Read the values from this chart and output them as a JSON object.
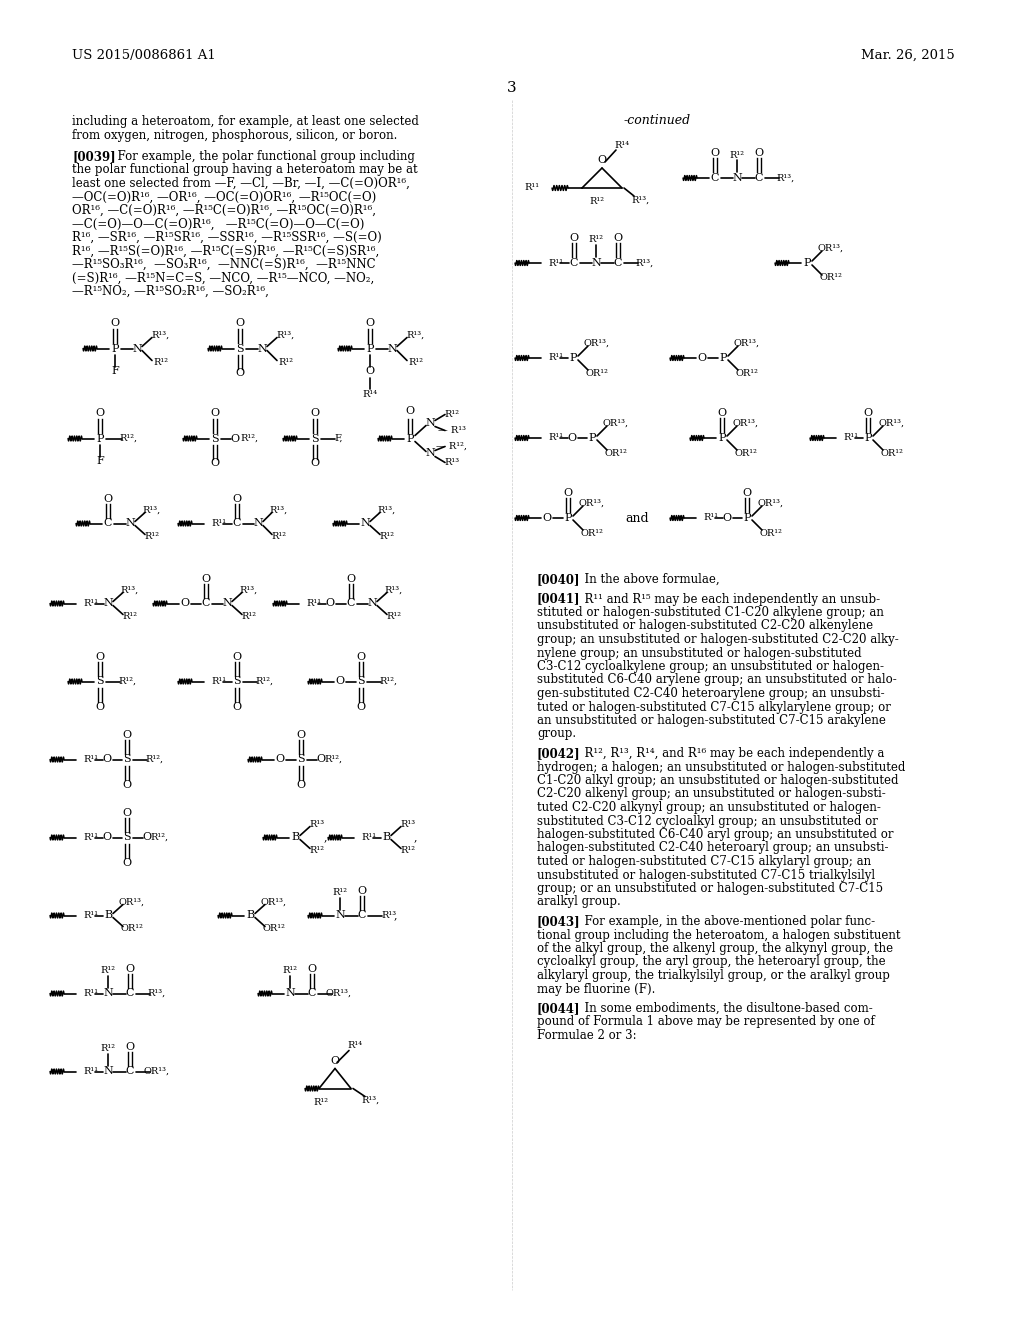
{
  "header_left": "US 2015/0086861 A1",
  "header_right": "Mar. 26, 2015",
  "page_number": "3",
  "continued_label": "-continued",
  "left_text_para1": "including a heteroatom, for example, at least one selected\nfrom oxygen, nitrogen, phosphorous, silicon, or boron.",
  "left_text_para2_tag": "[0039]",
  "left_text_para2": "For example, the polar functional group including\nthe polar functional group having a heteroatom may be at\nleast one selected from —F, —Cl, —Br, —I, —C(=O)OR¹⁶,\n—OC(=O)R¹⁶, —OR¹⁶, —OC(=O)OR¹⁶, —R¹⁵OC(=O)\nOR¹⁶, —C(=O)R¹⁶, —R¹⁵C(=O)R¹⁶, —R¹⁵OC(=O)R¹⁶,\n—C(=O)—O—C(=O)R¹⁶,   —R¹⁵C(=O)—O—C(=O)\nR¹⁶, —SR¹⁶, —R¹⁵SR¹⁶, —SSR¹⁶, —R¹⁵SSR¹⁶, —S(=O)\nR¹⁶, —R¹⁵S(=O)R¹⁶, —R¹⁵C(=S)R¹⁶, —R¹⁵C(=S)SR¹⁶,\n—R¹⁵SO₃R¹⁶,  —SO₃R¹⁶,  —NNC(=S)R¹⁶,  —R¹⁵NNC\n(=S)R¹⁶, —R¹⁵N=C=S, —NCO, —R¹⁵—NCO, —NO₂,\n—R¹⁵NO₂, —R¹⁵SO₂R¹⁶, —SO₂R¹⁶,",
  "right_para0_tag": "[0040]",
  "right_para0": "In the above formulae,",
  "right_para1_tag": "[0041]",
  "right_para1": "R¹¹ and R¹⁵ may be each independently an unsub-\nstituted or halogen-substituted C1-C20 alkylene group; an\nunsubstituted or halogen-substituted C2-C20 alkenylene\ngroup; an unsubstituted or halogen-substituted C2-C20 alky-\nnylene group; an unsubstituted or halogen-substituted\nC3-C12 cycloalkylene group; an unsubstituted or halogen-\nsubstituted C6-C40 arylene group; an unsubstituted or halo-\ngen-substituted C2-C40 heteroarylene group; an unsubsti-\ntuted or halogen-substituted C7-C15 alkylarylene group; or\nan unsubstituted or halogen-substituted C7-C15 arakylene\ngroup.",
  "right_para2_tag": "[0042]",
  "right_para2": "R¹², R¹³, R¹⁴, and R¹⁶ may be each independently a\nhydrogen; a halogen; an unsubstituted or halogen-substituted\nC1-C20 alkyl group; an unsubstituted or halogen-substituted\nC2-C20 alkenyl group; an unsubstituted or halogen-substi-\ntuted C2-C20 alkynyl group; an unsubstituted or halogen-\nsubstituted C3-C12 cycloalkyl group; an unsubstituted or\nhalogen-substituted C6-C40 aryl group; an unsubstituted or\nhalogen-substituted C2-C40 heteroaryl group; an unsubsti-\ntuted or halogen-substituted C7-C15 alkylaryl group; an\nunsubstituted or halogen-substituted C7-C15 trialkylsilyl\ngroup; or an unsubstituted or halogen-substituted C7-C15\naralkyl group.",
  "right_para3_tag": "[0043]",
  "right_para3": "For example, in the above-mentioned polar func-\ntional group including the heteroatom, a halogen substituent\nof the alkyl group, the alkenyl group, the alkynyl group, the\ncycloalkyl group, the aryl group, the heteroaryl group, the\nalkylaryl group, the trialkylsilyl group, or the aralkyl group\nmay be fluorine (F).",
  "right_para4_tag": "[0044]",
  "right_para4": "In some embodiments, the disultone-based com-\npound of Formula 1 above may be represented by one of\nFormulae 2 or 3:"
}
